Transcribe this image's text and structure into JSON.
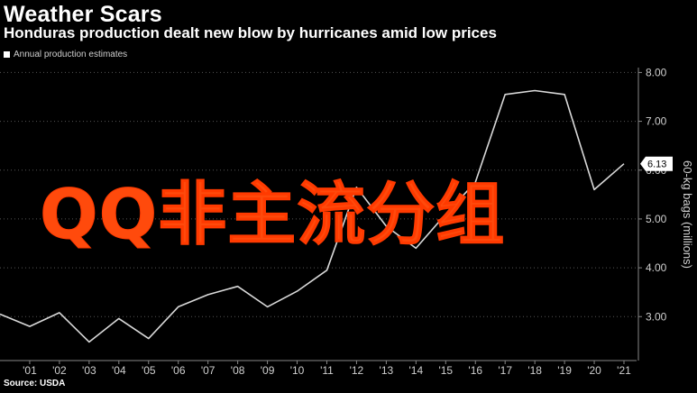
{
  "header": {
    "title": "Weather Scars",
    "subtitle": "Honduras production dealt new blow by hurricanes amid low prices"
  },
  "legend": {
    "label": "Annual production estimates"
  },
  "footer": {
    "source": "Source: USDA"
  },
  "watermark": {
    "text": "QQ非主流分组",
    "color": "#ff4a0c"
  },
  "colors": {
    "background": "#000000",
    "line": "#d9d9d9",
    "grid": "#555555",
    "axis_text": "#cfcfcf",
    "watermark": "#ff4a0c"
  },
  "chart_data": {
    "type": "line",
    "title": "Weather Scars",
    "subtitle": "Honduras production dealt new blow by hurricanes amid low prices",
    "ylabel": "60-kg bags (millions)",
    "xlabel": "",
    "y_axis_side": "right",
    "ylim": [
      2.1,
      8.1
    ],
    "yticks": [
      3,
      4,
      5,
      6,
      7,
      8
    ],
    "ytick_labels": [
      "3.00",
      "4.00",
      "5.00",
      "6.00",
      "7.00",
      "8.00"
    ],
    "grid": true,
    "grid_style": "dotted",
    "x_tick_labels": [
      "'01",
      "'02",
      "'03",
      "'04",
      "'05",
      "'06",
      "'07",
      "'08",
      "'09",
      "'10",
      "'11",
      "'12",
      "'13",
      "'14",
      "'15",
      "'16",
      "'17",
      "'18",
      "'19",
      "'20",
      "'21"
    ],
    "series": [
      {
        "name": "Annual production estimates",
        "x": [
          2000,
          2001,
          2002,
          2003,
          2004,
          2005,
          2006,
          2007,
          2008,
          2009,
          2010,
          2011,
          2012,
          2013,
          2014,
          2015,
          2016,
          2017,
          2018,
          2019,
          2020,
          2021
        ],
        "values": [
          3.05,
          2.8,
          3.08,
          2.48,
          2.96,
          2.55,
          3.2,
          3.45,
          3.62,
          3.2,
          3.52,
          3.95,
          5.65,
          4.85,
          4.4,
          5.1,
          5.75,
          7.55,
          7.63,
          7.55,
          5.6,
          6.13
        ]
      }
    ],
    "last_value_label": "6.13"
  }
}
